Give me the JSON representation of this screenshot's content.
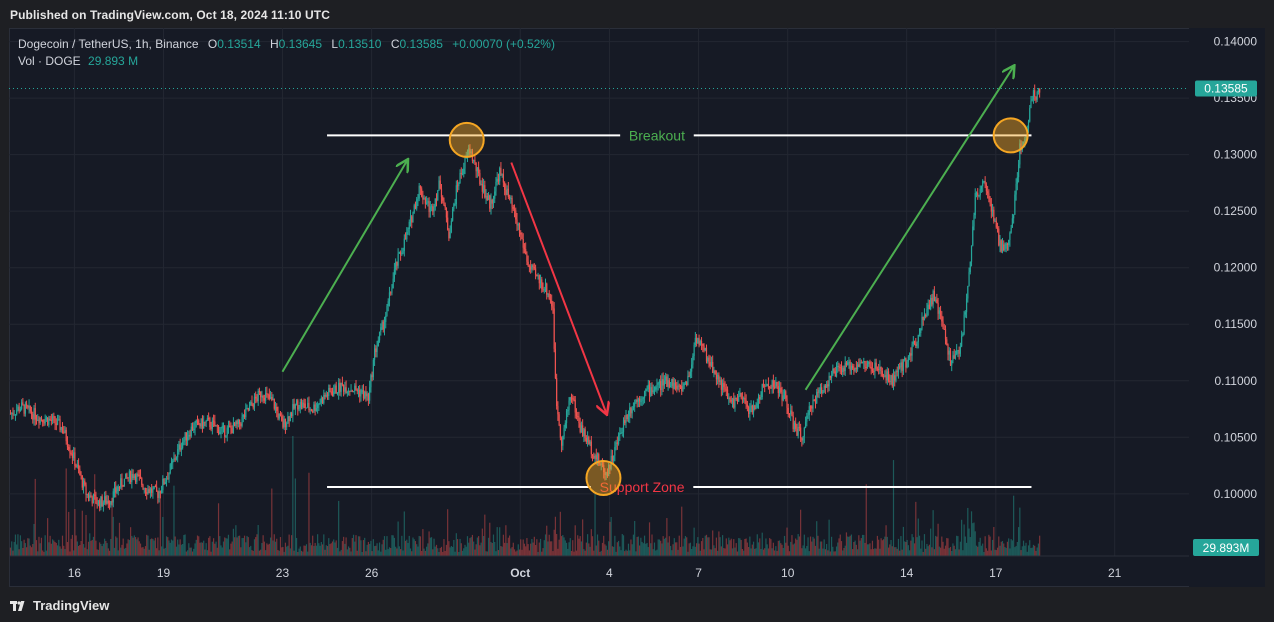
{
  "header": {
    "published": "Published on TradingView.com, Oct 18, 2024 11:10 UTC"
  },
  "legend": {
    "symbol": "Dogecoin / TetherUS, 1h, Binance",
    "open_label": "O",
    "open": "0.13514",
    "high_label": "H",
    "high": "0.13645",
    "low_label": "L",
    "low": "0.13510",
    "close_label": "C",
    "close": "0.13585",
    "change": "+0.00070 (+0.52%)",
    "vol_label": "Vol · DOGE",
    "vol_value": "29.893 M"
  },
  "footer": {
    "brand": "TradingView"
  },
  "colors": {
    "background": "#161a25",
    "up": "#26a69a",
    "down": "#ef5350",
    "green_arrow": "#4caf50",
    "red_arrow": "#f23645",
    "circle": "#f5a623"
  },
  "chart_data": {
    "type": "candlestick",
    "symbol": "Dogecoin / TetherUS",
    "timeframe": "1h",
    "exchange": "Binance",
    "y_ticks": [
      "0.14000",
      "0.13500",
      "0.13000",
      "0.12500",
      "0.12000",
      "0.11500",
      "0.11000",
      "0.10500",
      "0.10000"
    ],
    "x_ticks": [
      "16",
      "19",
      "23",
      "26",
      "Oct",
      "4",
      "7",
      "10",
      "14",
      "17",
      "21"
    ],
    "x_tick_values": [
      16,
      19,
      23,
      26,
      31,
      34,
      37,
      40,
      44,
      47,
      51
    ],
    "ylim": [
      0.0945,
      0.1412
    ],
    "xlim": [
      13.8,
      53.5
    ],
    "last_price_label": "0.13585",
    "last_price": 0.13585,
    "volume_label": "29.893M",
    "price_path": [
      [
        13.8,
        0.107
      ],
      [
        14.2,
        0.1077
      ],
      [
        14.8,
        0.1068
      ],
      [
        15.3,
        0.1064
      ],
      [
        15.6,
        0.1058
      ],
      [
        16.0,
        0.103
      ],
      [
        16.4,
        0.1
      ],
      [
        16.8,
        0.0992
      ],
      [
        17.2,
        0.0995
      ],
      [
        17.6,
        0.101
      ],
      [
        18.0,
        0.1018
      ],
      [
        18.4,
        0.1005
      ],
      [
        18.8,
        0.1
      ],
      [
        19.2,
        0.102
      ],
      [
        19.6,
        0.1045
      ],
      [
        20.0,
        0.106
      ],
      [
        20.5,
        0.1063
      ],
      [
        21.0,
        0.1055
      ],
      [
        21.5,
        0.106
      ],
      [
        22.0,
        0.108
      ],
      [
        22.3,
        0.109
      ],
      [
        22.7,
        0.108
      ],
      [
        23.0,
        0.106
      ],
      [
        23.5,
        0.108
      ],
      [
        24.0,
        0.1075
      ],
      [
        24.5,
        0.1088
      ],
      [
        25.0,
        0.1095
      ],
      [
        25.5,
        0.1092
      ],
      [
        25.9,
        0.1085
      ],
      [
        26.1,
        0.1125
      ],
      [
        26.5,
        0.116
      ],
      [
        26.8,
        0.12
      ],
      [
        27.2,
        0.123
      ],
      [
        27.6,
        0.127
      ],
      [
        28.0,
        0.125
      ],
      [
        28.3,
        0.1275
      ],
      [
        28.6,
        0.123
      ],
      [
        28.9,
        0.1275
      ],
      [
        29.3,
        0.1305
      ],
      [
        29.6,
        0.128
      ],
      [
        30.0,
        0.1255
      ],
      [
        30.3,
        0.1285
      ],
      [
        30.7,
        0.1255
      ],
      [
        31.0,
        0.123
      ],
      [
        31.3,
        0.12
      ],
      [
        31.6,
        0.119
      ],
      [
        31.9,
        0.118
      ],
      [
        32.1,
        0.1165
      ],
      [
        32.2,
        0.1085
      ],
      [
        32.4,
        0.1045
      ],
      [
        32.7,
        0.109
      ],
      [
        33.0,
        0.106
      ],
      [
        33.3,
        0.1045
      ],
      [
        33.6,
        0.103
      ],
      [
        33.9,
        0.1018
      ],
      [
        34.2,
        0.104
      ],
      [
        34.5,
        0.1065
      ],
      [
        34.8,
        0.108
      ],
      [
        35.2,
        0.109
      ],
      [
        35.6,
        0.1095
      ],
      [
        36.0,
        0.11
      ],
      [
        36.4,
        0.1092
      ],
      [
        36.7,
        0.1105
      ],
      [
        36.9,
        0.114
      ],
      [
        37.2,
        0.1125
      ],
      [
        37.5,
        0.111
      ],
      [
        37.8,
        0.1095
      ],
      [
        38.1,
        0.108
      ],
      [
        38.4,
        0.1085
      ],
      [
        38.8,
        0.1072
      ],
      [
        39.2,
        0.1095
      ],
      [
        39.5,
        0.1098
      ],
      [
        39.9,
        0.1085
      ],
      [
        40.2,
        0.106
      ],
      [
        40.5,
        0.105
      ],
      [
        40.8,
        0.108
      ],
      [
        41.2,
        0.1095
      ],
      [
        41.6,
        0.1108
      ],
      [
        42.0,
        0.1112
      ],
      [
        42.5,
        0.1115
      ],
      [
        43.0,
        0.111
      ],
      [
        43.5,
        0.11
      ],
      [
        44.0,
        0.1118
      ],
      [
        44.3,
        0.1135
      ],
      [
        44.6,
        0.116
      ],
      [
        44.9,
        0.1175
      ],
      [
        45.2,
        0.115
      ],
      [
        45.5,
        0.1115
      ],
      [
        45.8,
        0.113
      ],
      [
        46.0,
        0.1165
      ],
      [
        46.3,
        0.126
      ],
      [
        46.6,
        0.128
      ],
      [
        46.9,
        0.1245
      ],
      [
        47.2,
        0.1215
      ],
      [
        47.4,
        0.122
      ],
      [
        47.6,
        0.125
      ],
      [
        47.8,
        0.1305
      ],
      [
        48.0,
        0.1315
      ],
      [
        48.2,
        0.135
      ],
      [
        48.5,
        0.1358
      ]
    ],
    "annotations": [
      {
        "type": "hline",
        "label": "Breakout",
        "y": 0.1317,
        "x0": 24.5,
        "x1": 48.2,
        "label_x": 35.6,
        "label_color": "#4caf50"
      },
      {
        "type": "hline",
        "label": "Support Zone",
        "y": 0.1006,
        "x0": 24.5,
        "x1": 48.2,
        "label_x": 35.1,
        "label_color": "#f23645"
      },
      {
        "type": "arrow",
        "color": "#4caf50",
        "from": [
          23.0,
          0.1108
        ],
        "to": [
          27.2,
          0.1295
        ]
      },
      {
        "type": "arrow",
        "color": "#f23645",
        "from": [
          30.7,
          0.1293
        ],
        "to": [
          33.9,
          0.1071
        ]
      },
      {
        "type": "arrow",
        "color": "#4caf50",
        "from": [
          40.6,
          0.1092
        ],
        "to": [
          47.6,
          0.1378
        ]
      },
      {
        "type": "circle",
        "x": 29.2,
        "y": 0.1313
      },
      {
        "type": "circle",
        "x": 33.8,
        "y": 0.1014
      },
      {
        "type": "circle",
        "x": 47.5,
        "y": 0.1317
      }
    ]
  }
}
